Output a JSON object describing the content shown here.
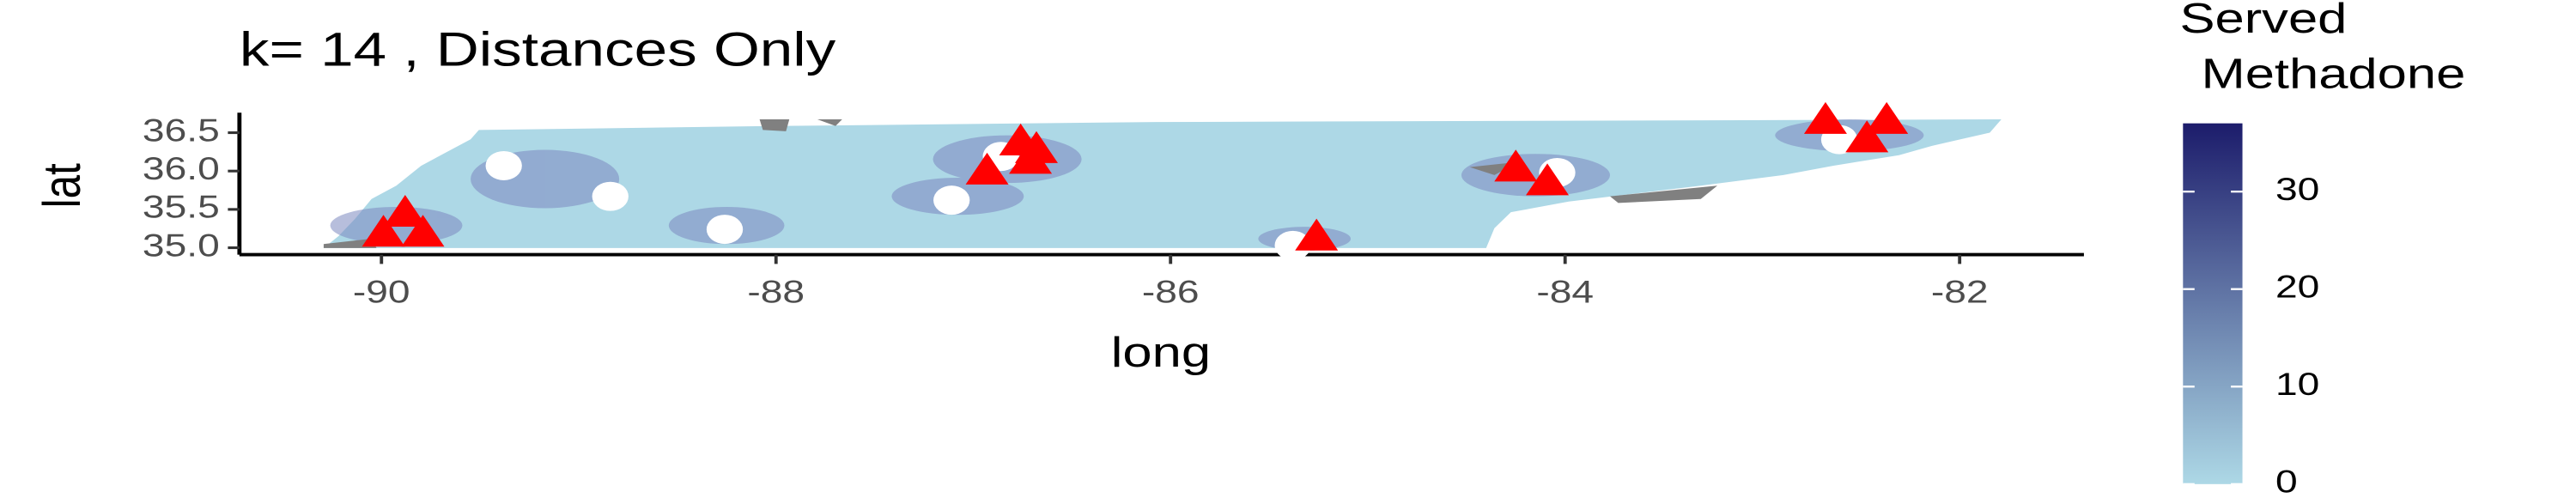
{
  "chart_data": {
    "type": "map",
    "title": "k= 14 , Distances Only",
    "x_label": "long",
    "y_label": "lat",
    "xlim": [
      -90.72,
      -81.37
    ],
    "ylim": [
      34.91,
      36.76
    ],
    "xticks": [
      -90,
      -88,
      -86,
      -84,
      -82
    ],
    "yticks": [
      {
        "value": 35,
        "label": "35.0"
      },
      {
        "value": 35.5,
        "label": "35.5"
      },
      {
        "value": 36,
        "label": "36.0"
      },
      {
        "value": 36.5,
        "label": "36.5"
      }
    ],
    "series": [
      {
        "marker": "circle",
        "color": "#ffffff",
        "x": [
          -89.38,
          -88.84,
          -88.26,
          -87.11,
          -86.86,
          -85.38,
          -84.04,
          -82.61
        ],
        "y": [
          36.07,
          35.67,
          35.24,
          35.62,
          36.19,
          35.03,
          35.98,
          36.41
        ]
      },
      {
        "marker": "triangle",
        "color": "#ff0000",
        "x": [
          -89.99,
          -89.88,
          -89.79,
          -86.93,
          -86.76,
          -86.68,
          -86.71,
          -85.26,
          -84.25,
          -84.09,
          -82.68,
          -82.37,
          -82.47
        ],
        "y": [
          35.17,
          35.43,
          35.17,
          35.98,
          36.36,
          36.26,
          36.12,
          35.12,
          36.02,
          35.84,
          36.64,
          36.64,
          36.4
        ]
      }
    ],
    "legend": {
      "title": [
        "Served",
        "Methadone"
      ],
      "colors": [
        "#add8e6",
        "#1c1c6b"
      ],
      "clim": [
        0,
        37
      ],
      "ticks": [
        0,
        10,
        20,
        30
      ]
    }
  }
}
